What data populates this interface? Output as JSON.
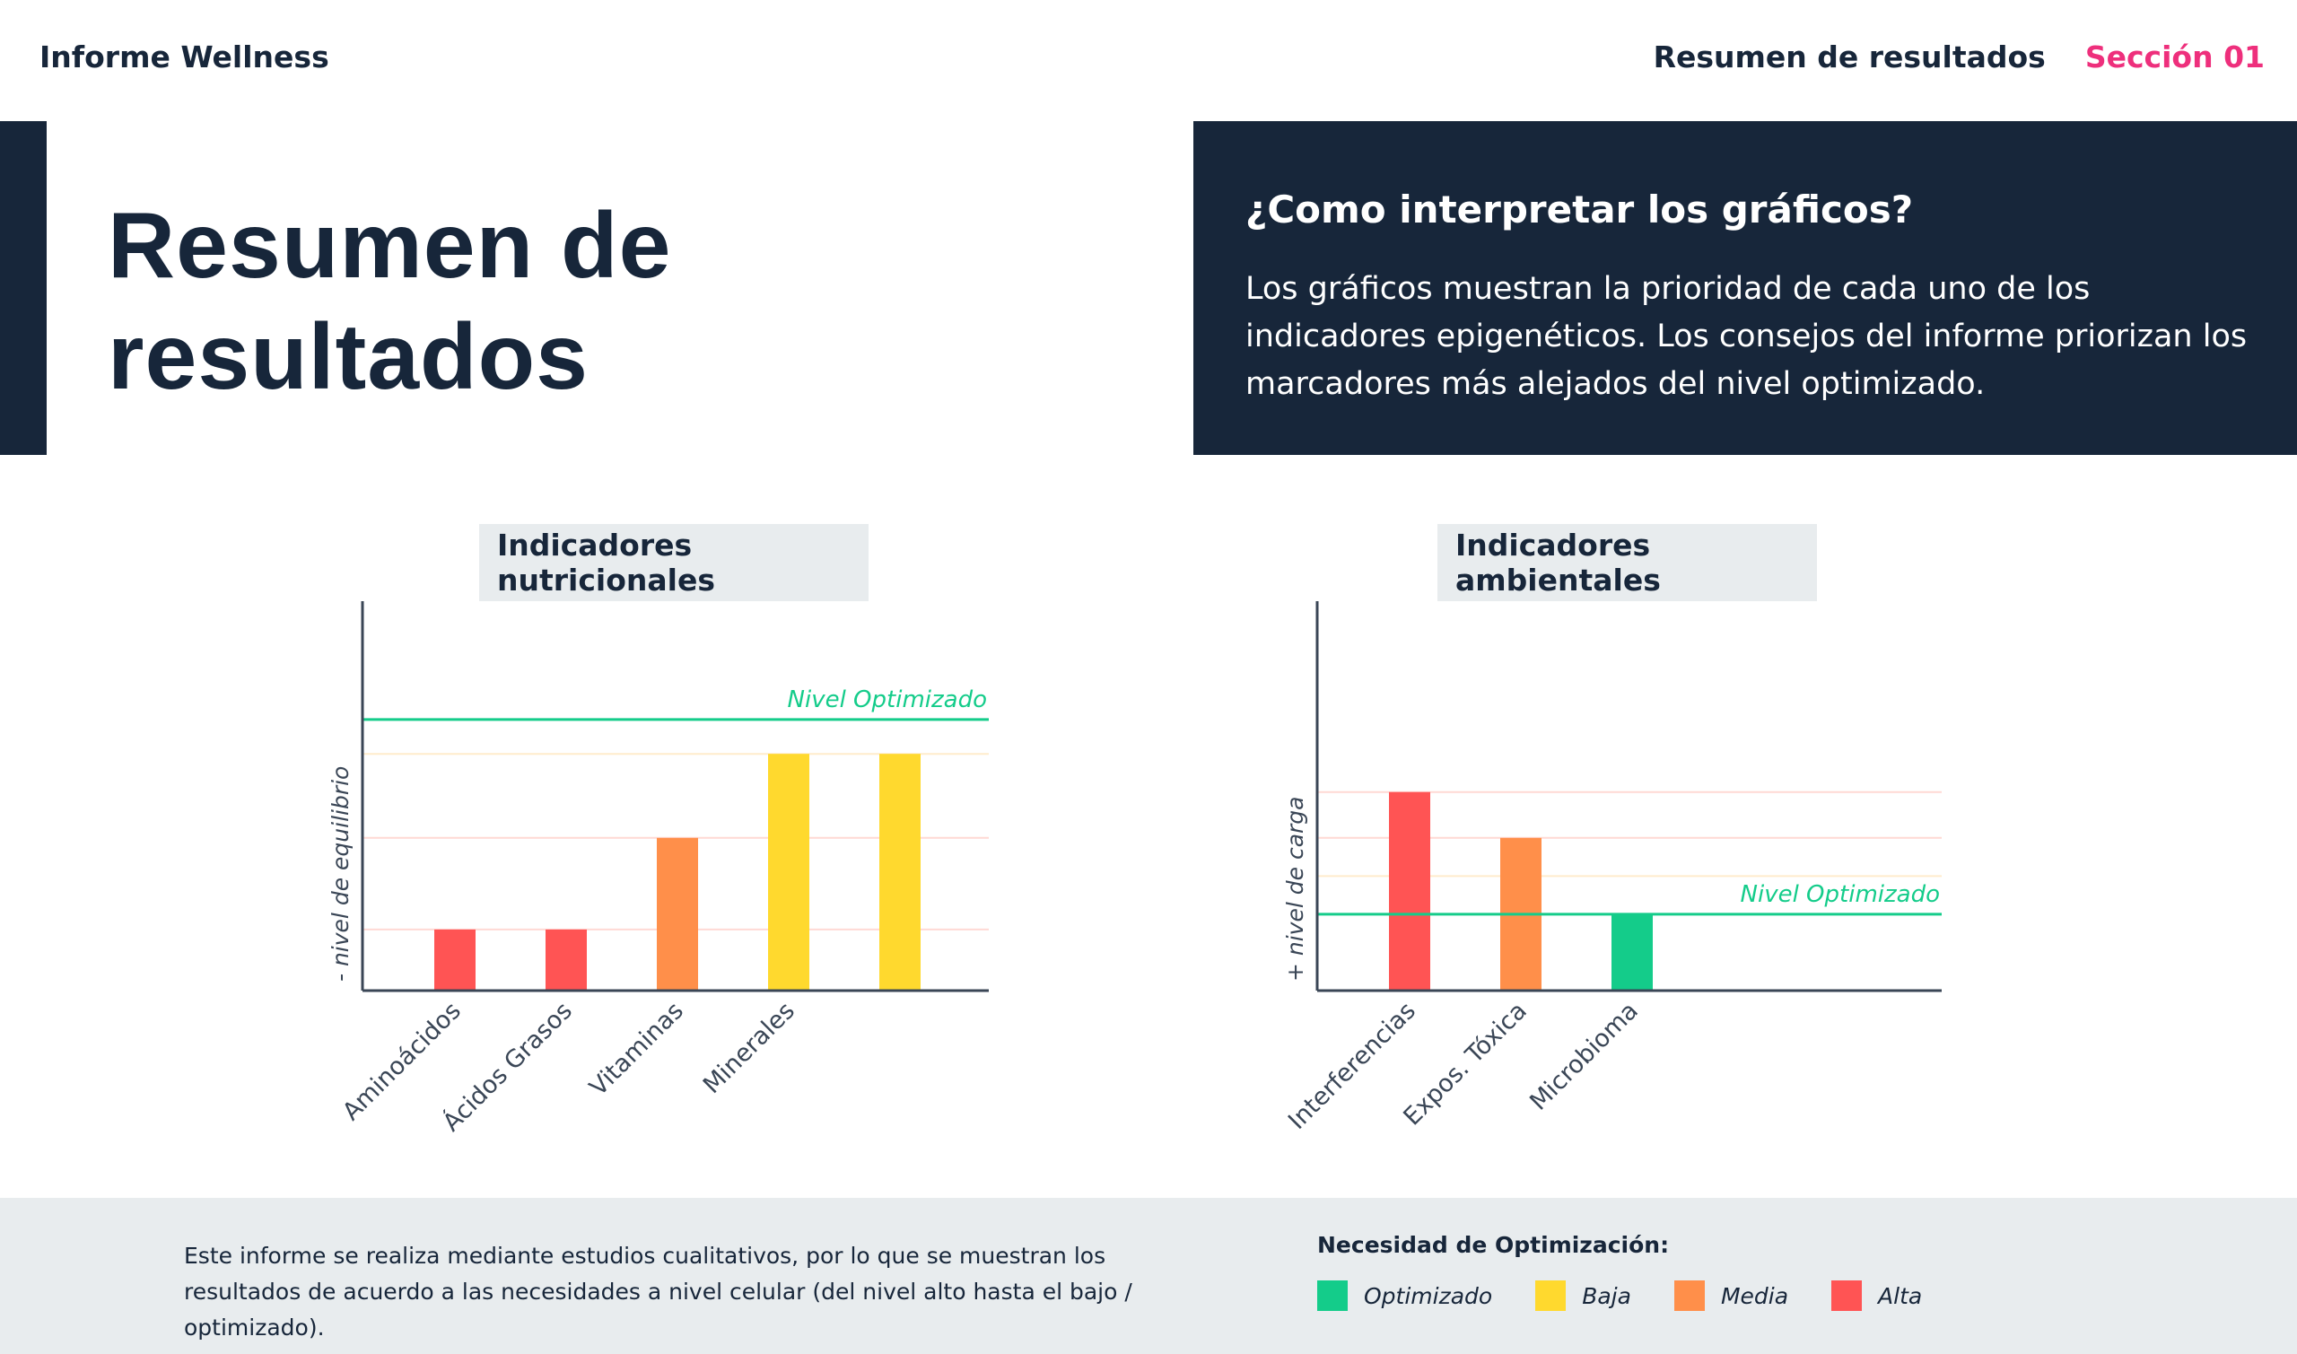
{
  "header": {
    "brand": "Informe Wellness",
    "section_title": "Resumen de resultados",
    "section_number": "Sección 01"
  },
  "page": {
    "title": "Resumen de resultados"
  },
  "info": {
    "question": "¿Como interpretar los gráficos?",
    "answer": "Los gráficos muestran la prioridad de cada uno de los indicadores epigenéticos. Los consejos del informe priorizan los marcadores más alejados del nivel optimizado."
  },
  "colors": {
    "navy": "#17263a",
    "accent_pink": "#ee2f7c",
    "optimizado": "#14cc8a",
    "baja": "#ffd92e",
    "media": "#ff8f4a",
    "alta": "#ff5454"
  },
  "chart_data": [
    {
      "type": "bar",
      "title": "Indicadores nutricionales",
      "ylabel": "- nivel de equilibrio",
      "categories": [
        "Aminoácidos",
        "Ácidos Grasos",
        "Vitaminas",
        "Minerales",
        ""
      ],
      "values": [
        0.8,
        0.8,
        2.0,
        3.1,
        3.1
      ],
      "bar_levels": [
        "alta",
        "alta",
        "media",
        "baja",
        "baja"
      ],
      "ylim": [
        0,
        5.1
      ],
      "reference_lines": [
        {
          "value": 0.8,
          "color": "#ffd9d4"
        },
        {
          "value": 2.0,
          "color": "#ffd9d4"
        },
        {
          "value": 3.1,
          "color": "#ffeccc"
        }
      ],
      "optimized_level": {
        "label": "Nivel Optimizado",
        "value": 3.55
      }
    },
    {
      "type": "bar",
      "title": "Indicadores ambientales",
      "ylabel": "+ nivel de carga",
      "categories": [
        "Interferencias",
        "Expos. Tóxica",
        "Microbioma"
      ],
      "values": [
        2.6,
        2.0,
        1.0
      ],
      "bar_levels": [
        "alta",
        "media",
        "optimizado"
      ],
      "ylim": [
        0,
        5.1
      ],
      "reference_lines": [
        {
          "value": 2.6,
          "color": "#ffd9d4"
        },
        {
          "value": 2.0,
          "color": "#ffd9d4"
        },
        {
          "value": 1.5,
          "color": "#ffeccc"
        }
      ],
      "optimized_level": {
        "label": "Nivel Optimizado",
        "value": 1.0
      }
    }
  ],
  "footer": {
    "note": "Este informe se realiza mediante estudios cualitativos, por lo que se muestran los resultados de acuerdo a las necesidades a nivel celular (del nivel alto hasta el bajo / optimizado).",
    "legend_title": "Necesidad de Optimización:",
    "legend": [
      {
        "label": "Optimizado",
        "color": "#14cc8a"
      },
      {
        "label": "Baja",
        "color": "#ffd92e"
      },
      {
        "label": "Media",
        "color": "#ff8f4a"
      },
      {
        "label": "Alta",
        "color": "#ff5454"
      }
    ]
  }
}
